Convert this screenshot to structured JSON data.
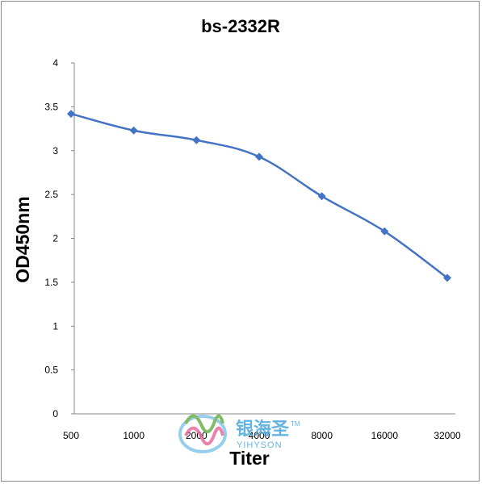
{
  "chart_data": {
    "type": "line",
    "title": "bs-2332R",
    "xlabel": "Titer",
    "ylabel": "OD450nm",
    "categories": [
      "500",
      "1000",
      "2000",
      "4000",
      "8000",
      "16000",
      "32000"
    ],
    "series": [
      {
        "values": [
          3.42,
          3.23,
          3.12,
          2.93,
          2.48,
          2.08,
          1.55
        ]
      }
    ],
    "ylim": [
      0,
      4
    ],
    "yticks": [
      "0",
      "0.5",
      "1",
      "1.5",
      "2",
      "2.5",
      "3",
      "3.5",
      "4"
    ],
    "grid": false,
    "legend": "none",
    "colors": {
      "line": "#4472c4",
      "axis": "#868686"
    }
  },
  "watermark": {
    "cn": "银海圣",
    "en": "YIHYSON",
    "tm": "TM"
  }
}
